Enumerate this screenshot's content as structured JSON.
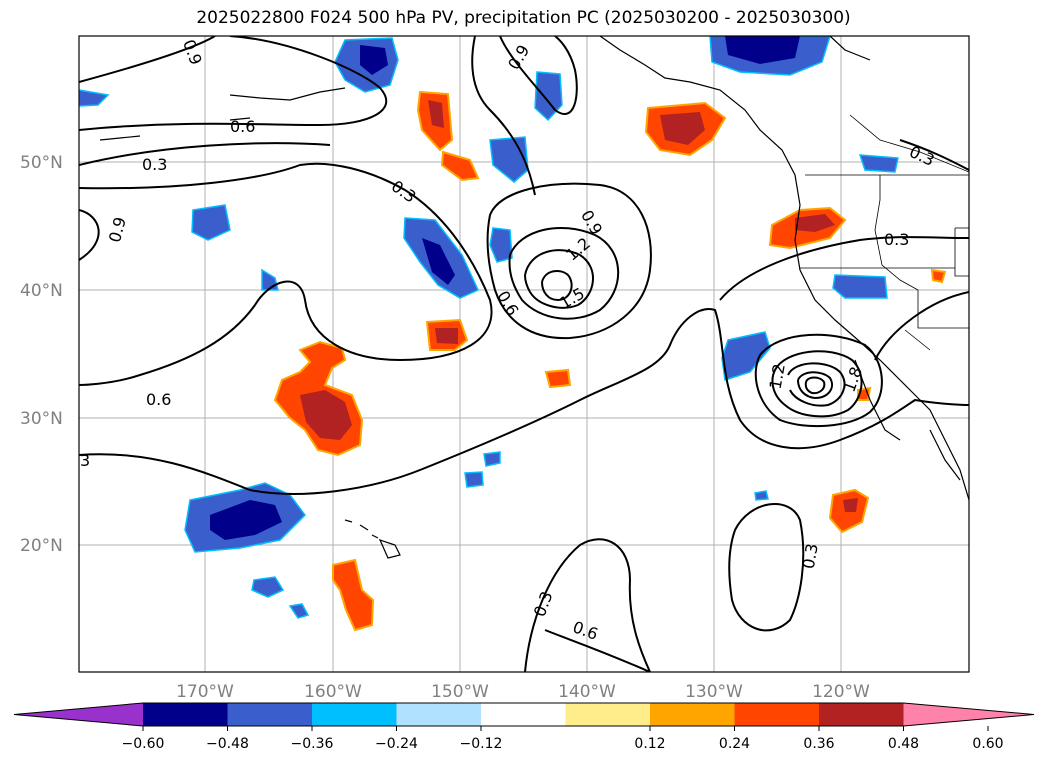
{
  "title": "2025022800 F024 500 hPa PV, precipitation PC (2025030200 - 2025030300)",
  "map": {
    "lat_labels": [
      "50°N",
      "40°N",
      "30°N",
      "20°N"
    ],
    "lon_labels": [
      "170°W",
      "160°W",
      "150°W",
      "140°W",
      "130°W",
      "120°W"
    ],
    "contour_labels": [
      "0.9",
      "0.6",
      "0.3",
      "0.9",
      "0.3",
      "0.9",
      "1.2",
      "1.5",
      "0.6",
      "0.3",
      "0.6",
      "3",
      "0.9",
      "1.2",
      "1.8",
      "0.3",
      "0.3",
      "0.6",
      "0.3"
    ]
  },
  "colorbar": {
    "ticks": [
      "−0.60",
      "−0.48",
      "−0.36",
      "−0.24",
      "−0.12",
      "0.12",
      "0.24",
      "0.36",
      "0.48",
      "0.60"
    ],
    "colors": [
      "#9932cc",
      "#00008b",
      "#3a5fcd",
      "#00bfff",
      "#b0e2ff",
      "#ffffff",
      "#ffec8b",
      "#ffa500",
      "#ff4500",
      "#b22222",
      "#ff82ab"
    ]
  }
}
